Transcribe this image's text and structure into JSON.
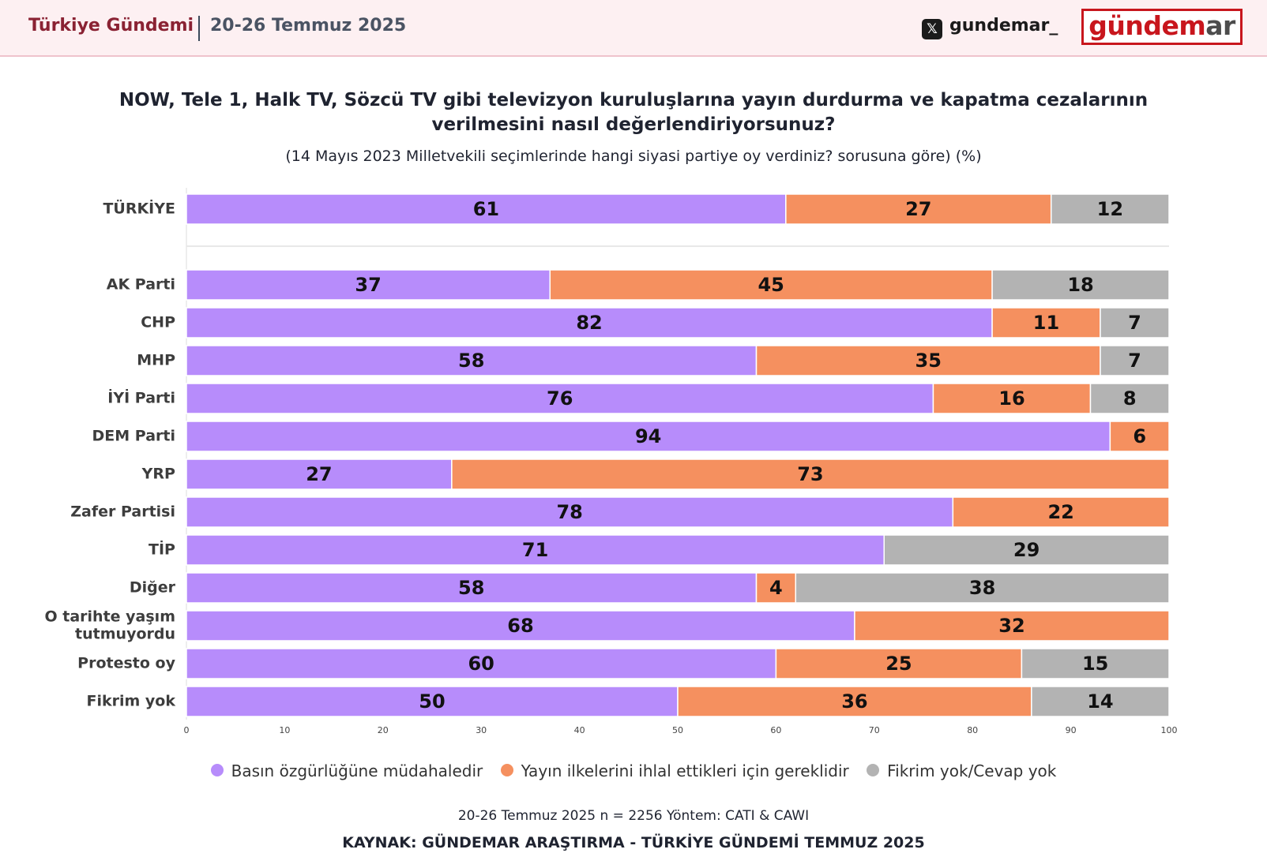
{
  "header": {
    "series_name": "Türkiye Gündemi",
    "week": "20-26 Temmuz 2025",
    "x_icon": "x-logo-icon",
    "handle": "gundemar_",
    "logo_main": "gündem",
    "logo_tail": "ar"
  },
  "colors": {
    "s1": "#b78cfb",
    "s2": "#f5905f",
    "s3": "#b3b3b3",
    "accent": "#c8161d"
  },
  "chart_data": {
    "type": "bar",
    "orientation": "horizontal",
    "stacked": true,
    "title": "NOW, Tele 1, Halk TV, Sözcü TV gibi televizyon kuruluşlarına yayın durdurma ve kapatma cezalarının verilmesini nasıl değerlendiriyorsunuz?",
    "subtitle": "(14 Mayıs 2023 Milletvekili seçimlerinde hangi siyasi partiye oy verdiniz? sorusuna göre) (%)",
    "xlim": [
      0,
      100
    ],
    "xticks": [
      0,
      10,
      20,
      30,
      40,
      50,
      60,
      70,
      80,
      90,
      100
    ],
    "legend_position": "bottom",
    "categories": [
      [
        "TÜRKİYE"
      ],
      [
        "AK Parti"
      ],
      [
        "CHP"
      ],
      [
        "MHP"
      ],
      [
        "İYİ Parti"
      ],
      [
        "DEM Parti"
      ],
      [
        "YRP"
      ],
      [
        "Zafer Partisi"
      ],
      [
        "TİP"
      ],
      [
        "Diğer"
      ],
      [
        "O tarihte yaşım",
        "tutmuyordu"
      ],
      [
        "Protesto oy"
      ],
      [
        "Fikrim yok"
      ]
    ],
    "series": [
      {
        "name": "Basın özgürlüğüne müdahaledir",
        "values": [
          61,
          37,
          82,
          58,
          76,
          94,
          27,
          78,
          71,
          58,
          68,
          60,
          50
        ]
      },
      {
        "name": "Yayın ilkelerini ihlal ettikleri için gereklidir",
        "values": [
          27,
          45,
          11,
          35,
          16,
          6,
          73,
          22,
          0,
          4,
          32,
          25,
          36
        ]
      },
      {
        "name": "Fikrim yok/Cevap yok",
        "values": [
          12,
          18,
          7,
          7,
          8,
          0,
          0,
          0,
          29,
          38,
          0,
          15,
          14
        ]
      }
    ]
  },
  "footer": {
    "meta": "20-26 Temmuz 2025 n = 2256 Yöntem: CATI & CAWI",
    "source": "KAYNAK: GÜNDEMAR ARAŞTIRMA - TÜRKİYE GÜNDEMİ TEMMUZ 2025"
  }
}
